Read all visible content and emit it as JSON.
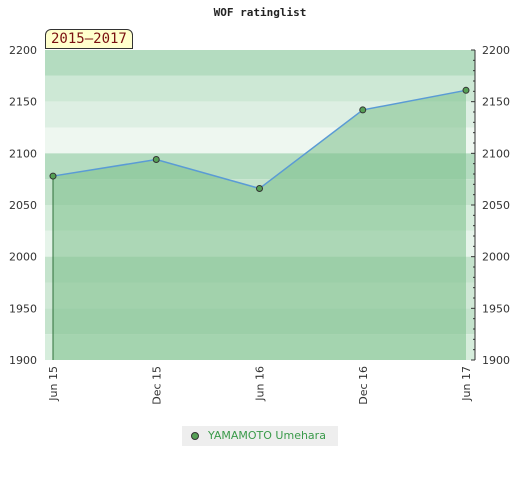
{
  "chart_data": {
    "type": "line",
    "title": "WOF ratinglist",
    "period_label": "2015–2017",
    "x_ticks": [
      "Jun 15",
      "Dec 15",
      "Jun 16",
      "Dec 16",
      "Jun 17"
    ],
    "y_ticks": [
      2200,
      2150,
      2100,
      2050,
      2000,
      1950,
      1900
    ],
    "ylim": [
      1900,
      2200
    ],
    "grid": true,
    "legend_position": "bottom-center",
    "series": [
      {
        "name": "YAMAMOTO Umehara",
        "x": [
          "Jun 15",
          "Dec 15",
          "Jun 16",
          "Dec 16",
          "Jun 17"
        ],
        "values": [
          2078,
          2094,
          2066,
          2142,
          2161
        ]
      }
    ],
    "colors": {
      "line": "#5a9bd5",
      "marker": "#55a055",
      "fill": "#7cc08a",
      "band_dark": "#8ccb9c",
      "band_light": "#b4dcc0",
      "legend_text": "#3a9a4a",
      "badge_bg": "#ffffcc",
      "badge_text": "#7a1010"
    }
  }
}
